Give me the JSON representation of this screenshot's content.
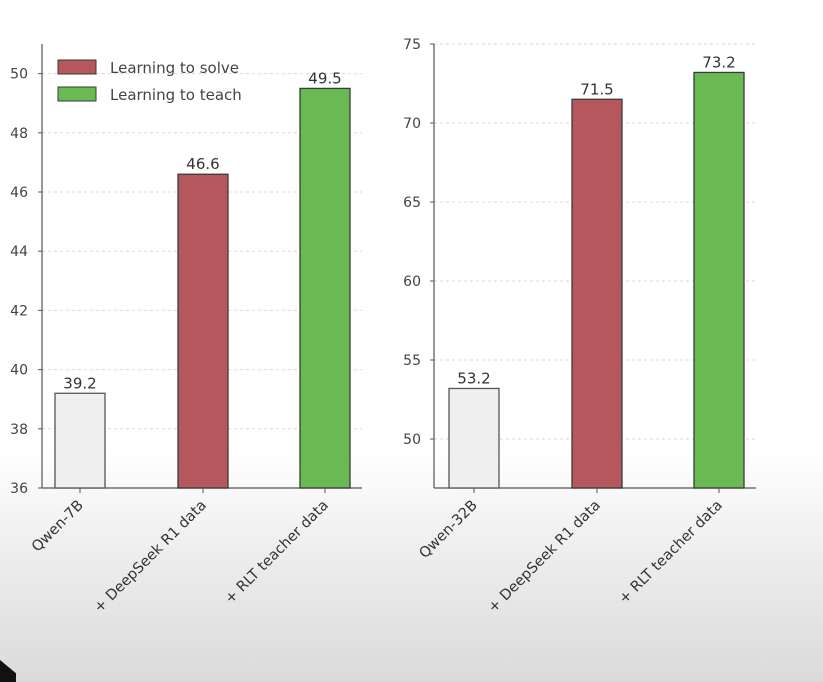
{
  "colors": {
    "learning_to_solve": "#b5575c",
    "learning_to_teach": "#6aba54",
    "baseline": "#efefef"
  },
  "legend": {
    "items": [
      {
        "label": "Learning to solve",
        "color_key": "learning_to_solve"
      },
      {
        "label": "Learning to teach",
        "color_key": "learning_to_teach"
      }
    ],
    "placement": "top-left of left chart"
  },
  "chart_data": [
    {
      "type": "bar",
      "title": "",
      "xlabel": "",
      "ylabel": "",
      "categories": [
        "Qwen-7B",
        "+ DeepSeek R1 data",
        "+ RLT teacher data"
      ],
      "values": [
        39.2,
        46.6,
        49.5
      ],
      "value_labels": [
        "39.2",
        "46.6",
        "49.5"
      ],
      "bar_color_keys": [
        "baseline",
        "learning_to_solve",
        "learning_to_teach"
      ],
      "ylim": [
        36,
        51
      ],
      "yticks": [
        36,
        38,
        40,
        42,
        44,
        46,
        48,
        50
      ],
      "grid": true
    },
    {
      "type": "bar",
      "title": "",
      "xlabel": "",
      "ylabel": "",
      "categories": [
        "Qwen-32B",
        "+ DeepSeek R1 data",
        "+ RLT teacher data"
      ],
      "values": [
        53.2,
        71.5,
        73.2
      ],
      "value_labels": [
        "53.2",
        "71.5",
        "73.2"
      ],
      "bar_color_keys": [
        "baseline",
        "learning_to_solve",
        "learning_to_teach"
      ],
      "ylim": [
        46.9,
        75
      ],
      "yticks": [
        50,
        55,
        60,
        65,
        70,
        75
      ],
      "grid": true
    }
  ]
}
